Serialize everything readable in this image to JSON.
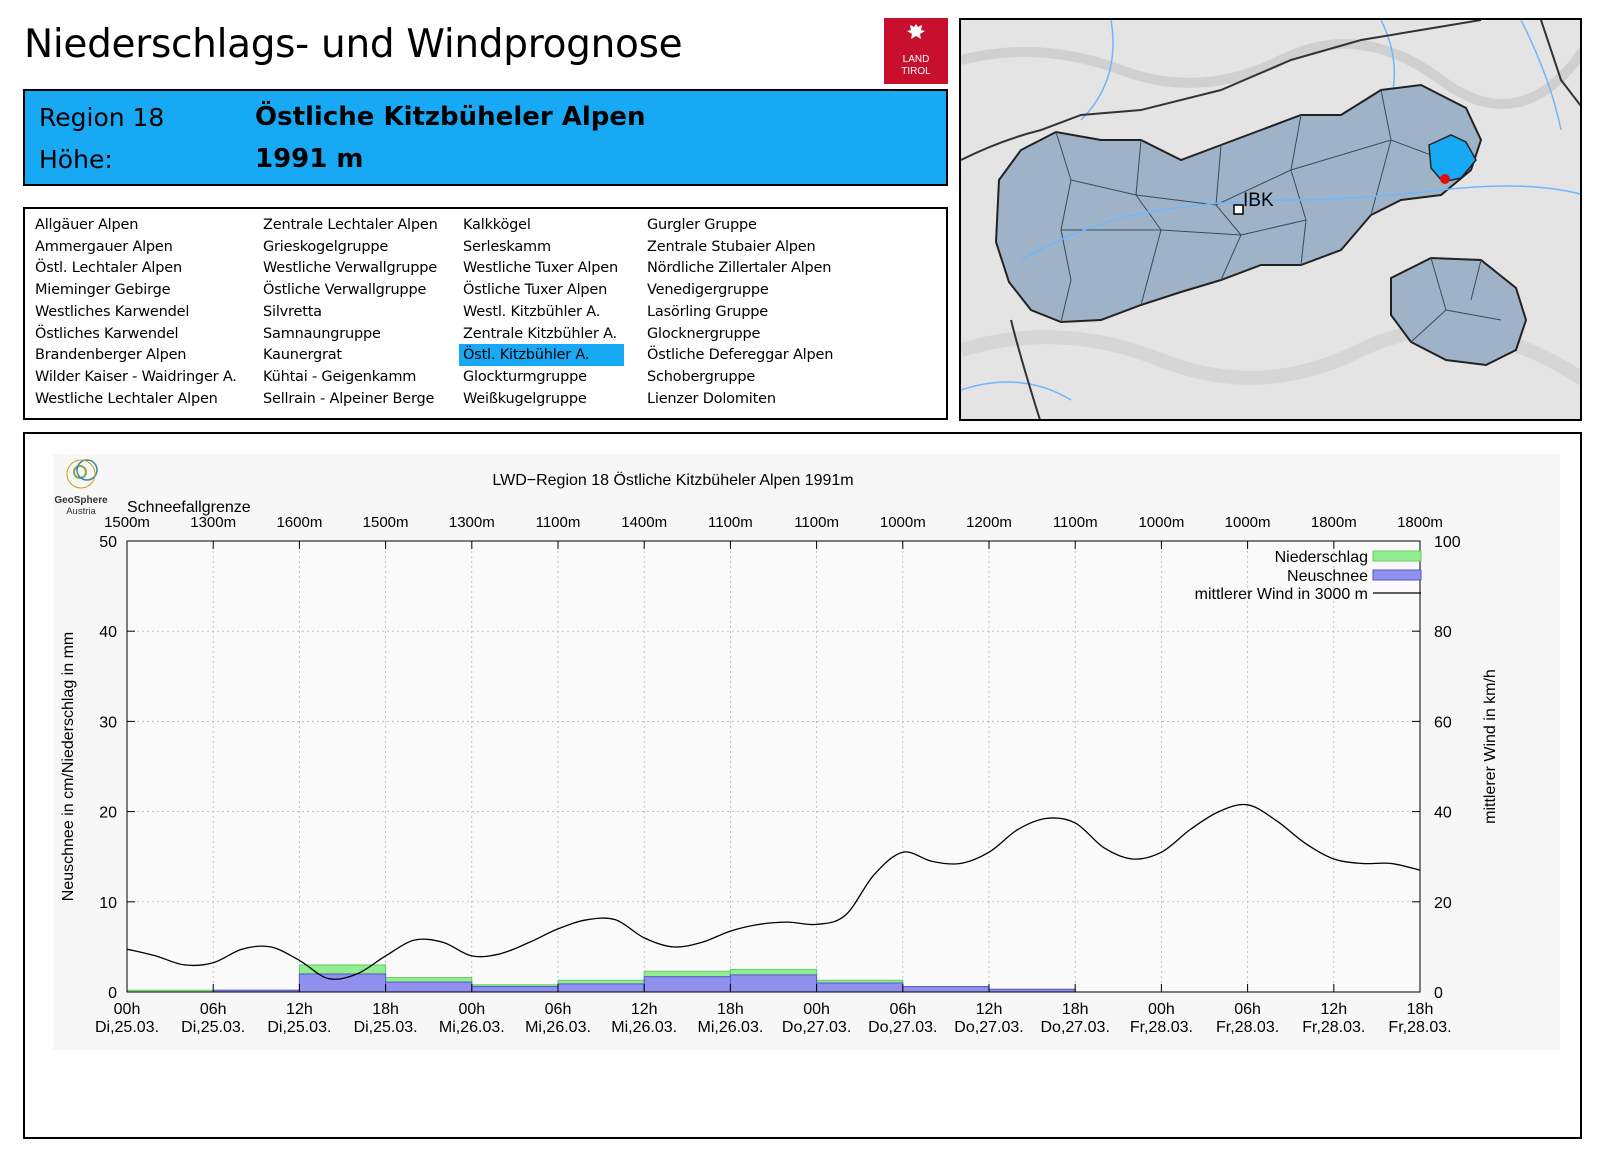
{
  "header": {
    "title": "Niederschlags- und Windprognose"
  },
  "logo": {
    "line1": "LAND",
    "line2": "TIROL"
  },
  "region": {
    "label_region": "Region 18",
    "name": "Östliche Kitzbüheler Alpen",
    "label_height": "Höhe:",
    "height": "1991 m"
  },
  "region_list": [
    [
      "Allgäuer Alpen",
      "Ammergauer Alpen",
      "Östl. Lechtaler Alpen",
      "Mieminger Gebirge",
      "Westliches Karwendel",
      "Östliches Karwendel",
      "Brandenberger Alpen",
      "Wilder Kaiser - Waidringer A.",
      "Westliche Lechtaler Alpen"
    ],
    [
      "Zentrale Lechtaler Alpen",
      "Grieskogelgruppe",
      "Westliche Verwallgruppe",
      "Östliche Verwallgruppe",
      "Silvretta",
      "Samnaungruppe",
      "Kaunergrat",
      "Kühtai - Geigenkamm",
      "Sellrain - Alpeiner Berge"
    ],
    [
      "Kalkkögel",
      "Serleskamm",
      "Westliche Tuxer Alpen",
      "Östliche Tuxer Alpen",
      "Westl. Kitzbühler A.",
      "Zentrale Kitzbühler A.",
      "Östl. Kitzbühler A.",
      "Glockturmgruppe",
      "Weißkugelgruppe"
    ],
    [
      "Gurgler Gruppe",
      "Zentrale Stubaier Alpen",
      "Nördliche Zillertaler Alpen",
      "Venedigergruppe",
      "Lasörling Gruppe",
      "Glocknergruppe",
      "Östliche Defereggar Alpen",
      "Schobergruppe",
      "Lienzer Dolomiten"
    ]
  ],
  "selected_region": "Östl. Kitzbühler A.",
  "map": {
    "city_label": "IBK"
  },
  "brand": {
    "line1": "GeoSphere",
    "line2": "Austria"
  },
  "colors": {
    "accent": "#18a9f5",
    "niederschlag": "#90ee90",
    "neuschnee": "#9090ee",
    "logo": "#c8102e"
  },
  "chart_data": {
    "type": "bar+line",
    "title": "LWD−Region 18 Östliche Kitzbüheler Alpen 1991m",
    "ylabel_left": "Neuschnee in cm/Niederschlag in mm",
    "ylabel_right": "mittlerer Wind in km/h",
    "ylim_left": [
      0,
      50
    ],
    "ylim_right": [
      0,
      100
    ],
    "yticks_left": [
      "0",
      "10",
      "20",
      "30",
      "40",
      "50"
    ],
    "yticks_right": [
      "0",
      "20",
      "40",
      "60",
      "80",
      "100"
    ],
    "x_range_hours": [
      0,
      90
    ],
    "x_ticks": [
      [
        "00h",
        "Di,25.03."
      ],
      [
        "06h",
        "Di,25.03."
      ],
      [
        "12h",
        "Di,25.03."
      ],
      [
        "18h",
        "Di,25.03."
      ],
      [
        "00h",
        "Mi,26.03."
      ],
      [
        "06h",
        "Mi,26.03."
      ],
      [
        "12h",
        "Mi,26.03."
      ],
      [
        "18h",
        "Mi,26.03."
      ],
      [
        "00h",
        "Do,27.03."
      ],
      [
        "06h",
        "Do,27.03."
      ],
      [
        "12h",
        "Do,27.03."
      ],
      [
        "18h",
        "Do,27.03."
      ],
      [
        "00h",
        "Fr,28.03."
      ],
      [
        "06h",
        "Fr,28.03."
      ],
      [
        "12h",
        "Fr,28.03."
      ],
      [
        "18h",
        "Fr,28.03."
      ]
    ],
    "snowline_label": "Schneefallgrenze",
    "snowline": [
      "1500m",
      "1300m",
      "1600m",
      "1500m",
      "1300m",
      "1100m",
      "1400m",
      "1100m",
      "1100m",
      "1000m",
      "1200m",
      "1100m",
      "1000m",
      "1000m",
      "1800m",
      "1800m"
    ],
    "legend": [
      "Niederschlag",
      "Neuschnee",
      "mittlerer Wind in 3000 m"
    ],
    "legend_position": "top-right",
    "bars_interval_hours": 6,
    "niederschlag": [
      0.2,
      0.2,
      3.0,
      1.6,
      0.8,
      1.3,
      2.3,
      2.5,
      1.3,
      0.6,
      0.3,
      0,
      0,
      0,
      0
    ],
    "neuschnee": [
      0.0,
      0.2,
      2.0,
      1.1,
      0.6,
      0.9,
      1.7,
      1.9,
      1.0,
      0.6,
      0.3,
      0,
      0,
      0,
      0
    ],
    "wind_hours": [
      0,
      2,
      4,
      6,
      8,
      10,
      12,
      14,
      16,
      18,
      20,
      22,
      24,
      26,
      28,
      30,
      32,
      34,
      36,
      38,
      40,
      42,
      44,
      46,
      48,
      50,
      52,
      54,
      56,
      58,
      60,
      62,
      64,
      66,
      68,
      70,
      72,
      74,
      76,
      78,
      80,
      82,
      84,
      86,
      88,
      90
    ],
    "wind_kmh": [
      9.5,
      8,
      6,
      6.5,
      9.5,
      10,
      7,
      3,
      4,
      8,
      11.5,
      11,
      8,
      8.5,
      11,
      14,
      16,
      16,
      12,
      10,
      11,
      13.5,
      15,
      15.5,
      15,
      17,
      26,
      31,
      29,
      28.5,
      31,
      36,
      38.5,
      37.5,
      32,
      29.5,
      31,
      36,
      40,
      41.5,
      38,
      33,
      29.5,
      28.5,
      28.5,
      27
    ]
  }
}
